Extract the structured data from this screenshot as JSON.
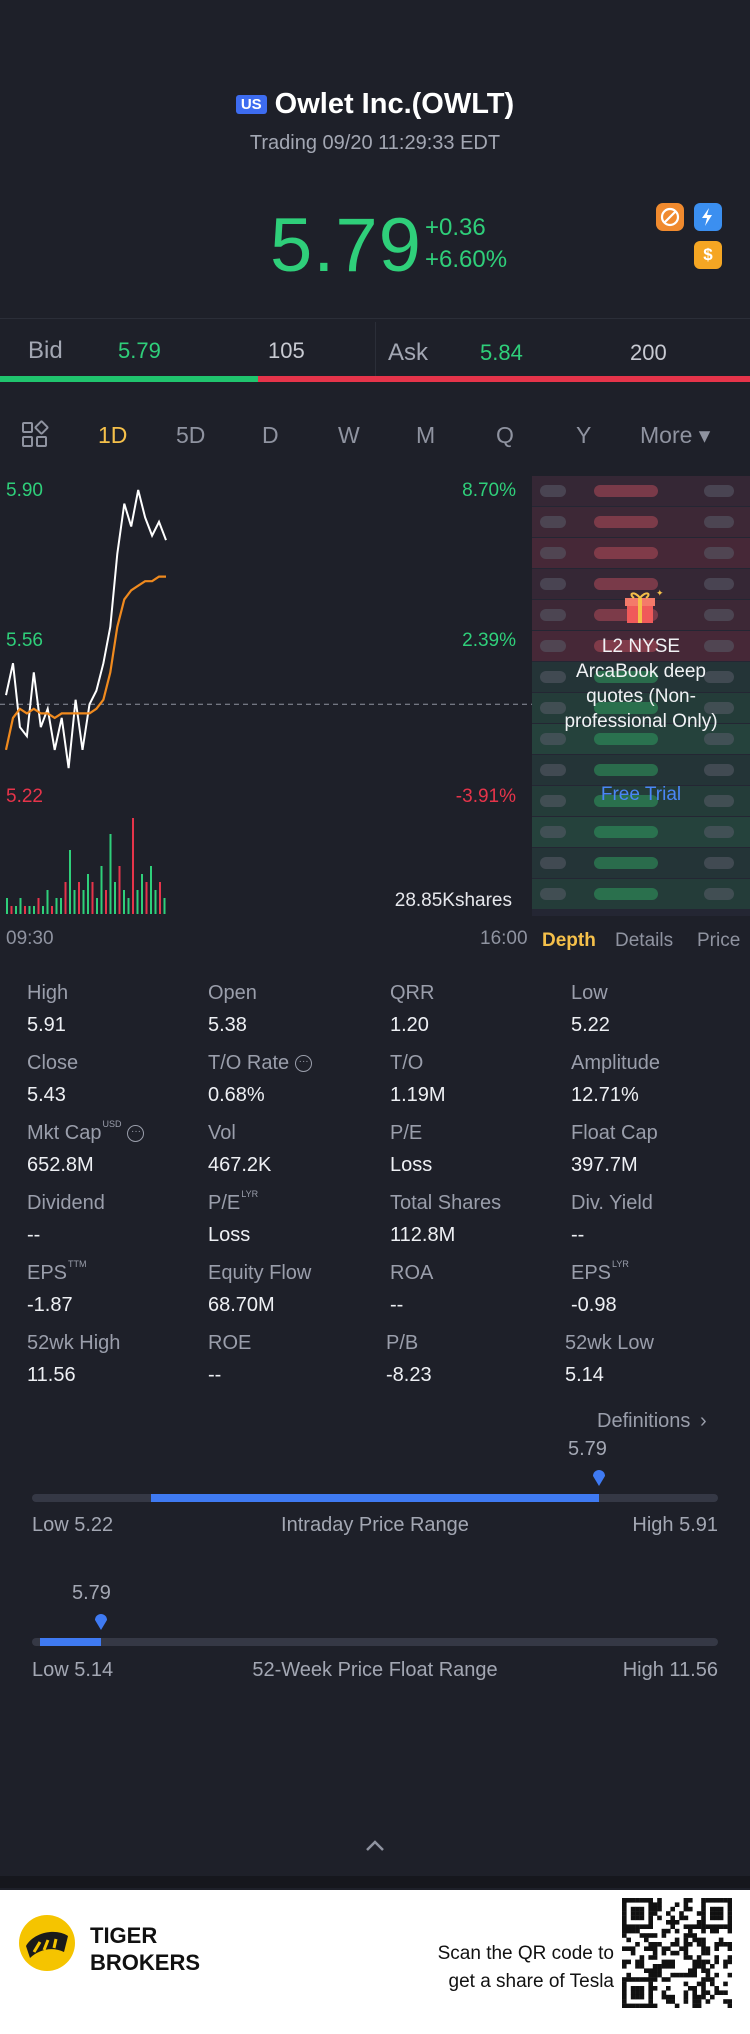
{
  "header": {
    "market_badge": "US",
    "title": "Owlet Inc.(OWLT)",
    "status": "Trading 09/20 11:29:33 EDT",
    "price": "5.79",
    "change": "+0.36",
    "change_pct": "+6.60%",
    "icons": [
      "no-fee-icon",
      "lightning-level1-icon",
      "dollar-icon"
    ]
  },
  "quote": {
    "bid_label": "Bid",
    "bid_price": "5.79",
    "bid_size": "105",
    "ask_label": "Ask",
    "ask_price": "5.84",
    "ask_size": "200",
    "bid_ratio": 0.344
  },
  "tabs": [
    "1D",
    "5D",
    "D",
    "W",
    "M",
    "Q",
    "Y",
    "More ▾"
  ],
  "active_tab": "1D",
  "chart": {
    "y_top": "5.90",
    "y_mid": "5.56",
    "y_bottom": "5.22",
    "pct_top": "8.70%",
    "pct_mid": "2.39%",
    "pct_bottom": "-3.91%",
    "volume": "28.85Kshares",
    "time_start": "09:30",
    "time_end": "16:00"
  },
  "chart_data": {
    "type": "line",
    "series": [
      {
        "values": [
          5.45,
          5.52,
          5.38,
          5.36,
          5.5,
          5.38,
          5.42,
          5.33,
          5.4,
          5.29,
          5.44,
          5.33,
          5.43,
          5.46,
          5.52,
          5.6,
          5.76,
          5.87,
          5.82,
          5.9,
          5.84,
          5.8,
          5.83,
          5.79
        ]
      },
      {
        "values": [
          5.33,
          5.4,
          5.42,
          5.41,
          5.42,
          5.41,
          5.41,
          5.4,
          5.41,
          5.41,
          5.41,
          5.41,
          5.41,
          5.42,
          5.44,
          5.5,
          5.6,
          5.66,
          5.68,
          5.69,
          5.7,
          5.7,
          5.71,
          5.71
        ]
      }
    ],
    "ylim": [
      5.22,
      5.9
    ],
    "prev_close": 5.43,
    "volume_bars": [
      2,
      1,
      1,
      2,
      1,
      1,
      1,
      2,
      1,
      3,
      1,
      2,
      2,
      4,
      8,
      3,
      4,
      3,
      5,
      4,
      2,
      6,
      3,
      10,
      4,
      6,
      3,
      2,
      12,
      3,
      5,
      4,
      6,
      3,
      4,
      2
    ]
  },
  "side_panel": {
    "promo_text": "L2 NYSE ArcaBook deep quotes (Non-professional Only)",
    "promo_link": "Free Trial",
    "tabs": [
      "Depth",
      "Details",
      "Price"
    ]
  },
  "stats": [
    [
      {
        "label": "High",
        "value": "5.91"
      },
      {
        "label": "Open",
        "value": "5.38"
      },
      {
        "label": "QRR",
        "value": "1.20"
      },
      {
        "label": "Low",
        "value": "5.22"
      }
    ],
    [
      {
        "label": "Close",
        "value": "5.43"
      },
      {
        "label": "T/O Rate",
        "value": "0.68%"
      },
      {
        "label": "T/O",
        "value": "1.19M"
      },
      {
        "label": "Amplitude",
        "value": "12.71%"
      }
    ],
    [
      {
        "label": "Mkt Cap",
        "sup": "USD",
        "value": "652.8M"
      },
      {
        "label": "Vol",
        "value": "467.2K"
      },
      {
        "label": "P/E",
        "value": "Loss"
      },
      {
        "label": "Float Cap",
        "value": "397.7M"
      }
    ],
    [
      {
        "label": "Dividend",
        "value": "--"
      },
      {
        "label": "P/E",
        "sup": "LYR",
        "value": "Loss"
      },
      {
        "label": "Total Shares",
        "value": "112.8M"
      },
      {
        "label": "Div. Yield",
        "value": "--"
      }
    ],
    [
      {
        "label": "EPS",
        "sup": "TTM",
        "value": "-1.87"
      },
      {
        "label": "Equity Flow",
        "value": "68.70M"
      },
      {
        "label": "ROA",
        "value": "--"
      },
      {
        "label": "EPS",
        "sup": "LYR",
        "value": "-0.98"
      }
    ],
    [
      {
        "label": "52wk High",
        "value": "11.56"
      },
      {
        "label": "ROE",
        "value": "--"
      },
      {
        "label": "P/B",
        "value": "-8.23"
      },
      {
        "label": "52wk Low",
        "value": "5.14"
      }
    ]
  ],
  "definitions_label": "Definitions",
  "intraday_range": {
    "current": "5.79",
    "low": "Low 5.22",
    "high": "High 5.91",
    "label": "Intraday Price Range",
    "low_value": 5.22,
    "high_value": 5.91,
    "position": 0.826
  },
  "week52_range": {
    "current": "5.79",
    "low": "Low 5.14",
    "high": "High 11.56",
    "label": "52-Week Price Float Range",
    "low_value": 5.14,
    "high_value": 11.56,
    "position": 0.101
  },
  "footer": {
    "brand_line1": "TIGER",
    "brand_line2": "BROKERS",
    "cta_line1": "Scan the QR code to",
    "cta_line2": "get a share of Tesla"
  }
}
